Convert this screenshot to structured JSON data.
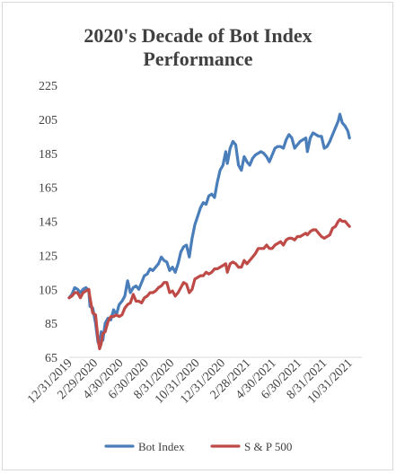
{
  "chart_data": {
    "type": "line",
    "title_lines": [
      "2020's Decade of Bot Index",
      "Performance"
    ],
    "xlabel": "",
    "ylabel": "",
    "ylim": [
      65,
      225
    ],
    "yticks": [
      65,
      85,
      105,
      125,
      145,
      165,
      185,
      205,
      225
    ],
    "xlim": [
      "2019-12-31",
      "2021-12-31"
    ],
    "xtick_labels": [
      "12/31/2019",
      "2/29/2020",
      "4/30/2020",
      "6/30/2020",
      "8/31/2020",
      "10/31/2020",
      "12/31/2020",
      "2/28/2021",
      "4/30/2021",
      "6/30/2021",
      "8/31/2021",
      "10/31/2021"
    ],
    "grid": false,
    "legend_position": "bottom",
    "series": [
      {
        "name": "Bot Index",
        "color": "#4a7ebb",
        "points": [
          [
            "2019-12-31",
            100
          ],
          [
            "2020-01-07",
            102
          ],
          [
            "2020-01-14",
            106
          ],
          [
            "2020-01-21",
            105
          ],
          [
            "2020-01-28",
            103
          ],
          [
            "2020-02-04",
            105
          ],
          [
            "2020-02-11",
            106
          ],
          [
            "2020-02-18",
            104
          ],
          [
            "2020-02-21",
            95
          ],
          [
            "2020-02-28",
            94
          ],
          [
            "2020-03-06",
            85
          ],
          [
            "2020-03-12",
            74
          ],
          [
            "2020-03-16",
            72
          ],
          [
            "2020-03-20",
            80
          ],
          [
            "2020-03-24",
            75
          ],
          [
            "2020-03-30",
            85
          ],
          [
            "2020-04-06",
            88
          ],
          [
            "2020-04-13",
            87
          ],
          [
            "2020-04-20",
            93
          ],
          [
            "2020-04-27",
            90
          ],
          [
            "2020-05-04",
            96
          ],
          [
            "2020-05-11",
            98
          ],
          [
            "2020-05-18",
            101
          ],
          [
            "2020-05-25",
            110
          ],
          [
            "2020-06-01",
            103
          ],
          [
            "2020-06-08",
            106
          ],
          [
            "2020-06-15",
            107
          ],
          [
            "2020-06-22",
            105
          ],
          [
            "2020-06-29",
            109
          ],
          [
            "2020-07-06",
            113
          ],
          [
            "2020-07-13",
            114
          ],
          [
            "2020-07-20",
            117
          ],
          [
            "2020-07-27",
            116
          ],
          [
            "2020-08-03",
            118
          ],
          [
            "2020-08-10",
            120
          ],
          [
            "2020-08-17",
            124
          ],
          [
            "2020-08-24",
            122
          ],
          [
            "2020-08-31",
            121
          ],
          [
            "2020-09-07",
            116
          ],
          [
            "2020-09-14",
            118
          ],
          [
            "2020-09-21",
            115
          ],
          [
            "2020-09-28",
            120
          ],
          [
            "2020-10-05",
            127
          ],
          [
            "2020-10-12",
            130
          ],
          [
            "2020-10-19",
            131
          ],
          [
            "2020-10-26",
            124
          ],
          [
            "2020-11-02",
            135
          ],
          [
            "2020-11-09",
            143
          ],
          [
            "2020-11-16",
            148
          ],
          [
            "2020-11-23",
            153
          ],
          [
            "2020-11-30",
            156
          ],
          [
            "2020-12-07",
            155
          ],
          [
            "2020-12-14",
            160
          ],
          [
            "2020-12-21",
            161
          ],
          [
            "2020-12-28",
            159
          ],
          [
            "2021-01-04",
            168
          ],
          [
            "2021-01-11",
            175
          ],
          [
            "2021-01-18",
            178
          ],
          [
            "2021-01-25",
            186
          ],
          [
            "2021-01-29",
            179
          ],
          [
            "2021-02-05",
            188
          ],
          [
            "2021-02-12",
            192
          ],
          [
            "2021-02-19",
            190
          ],
          [
            "2021-02-26",
            178
          ],
          [
            "2021-03-05",
            175
          ],
          [
            "2021-03-12",
            183
          ],
          [
            "2021-03-19",
            180
          ],
          [
            "2021-03-26",
            178
          ],
          [
            "2021-04-02",
            182
          ],
          [
            "2021-04-09",
            184
          ],
          [
            "2021-04-16",
            185
          ],
          [
            "2021-04-23",
            186
          ],
          [
            "2021-04-30",
            185
          ],
          [
            "2021-05-07",
            183
          ],
          [
            "2021-05-14",
            180
          ],
          [
            "2021-05-21",
            184
          ],
          [
            "2021-05-28",
            188
          ],
          [
            "2021-06-04",
            189
          ],
          [
            "2021-06-11",
            189
          ],
          [
            "2021-06-18",
            188
          ],
          [
            "2021-06-25",
            193
          ],
          [
            "2021-07-02",
            196
          ],
          [
            "2021-07-09",
            194
          ],
          [
            "2021-07-16",
            188
          ],
          [
            "2021-07-23",
            190
          ],
          [
            "2021-07-30",
            192
          ],
          [
            "2021-08-06",
            193
          ],
          [
            "2021-08-13",
            194
          ],
          [
            "2021-08-17",
            186
          ],
          [
            "2021-08-24",
            194
          ],
          [
            "2021-08-31",
            197
          ],
          [
            "2021-09-07",
            196
          ],
          [
            "2021-09-14",
            195
          ],
          [
            "2021-09-21",
            195
          ],
          [
            "2021-09-28",
            188
          ],
          [
            "2021-10-05",
            189
          ],
          [
            "2021-10-12",
            192
          ],
          [
            "2021-10-19",
            196
          ],
          [
            "2021-10-26",
            200
          ],
          [
            "2021-11-02",
            204
          ],
          [
            "2021-11-06",
            208
          ],
          [
            "2021-11-12",
            203
          ],
          [
            "2021-11-19",
            201
          ],
          [
            "2021-11-26",
            198
          ],
          [
            "2021-11-30",
            194
          ]
        ]
      },
      {
        "name": "S & P 500",
        "color": "#be4b48",
        "points": [
          [
            "2019-12-31",
            100
          ],
          [
            "2020-01-07",
            101
          ],
          [
            "2020-01-14",
            103
          ],
          [
            "2020-01-21",
            103
          ],
          [
            "2020-01-28",
            100
          ],
          [
            "2020-02-04",
            103
          ],
          [
            "2020-02-11",
            104
          ],
          [
            "2020-02-18",
            105
          ],
          [
            "2020-02-21",
            100
          ],
          [
            "2020-02-28",
            91
          ],
          [
            "2020-03-06",
            90
          ],
          [
            "2020-03-12",
            76
          ],
          [
            "2020-03-16",
            70
          ],
          [
            "2020-03-20",
            73
          ],
          [
            "2020-03-24",
            79
          ],
          [
            "2020-03-30",
            80
          ],
          [
            "2020-04-06",
            86
          ],
          [
            "2020-04-13",
            89
          ],
          [
            "2020-04-20",
            89
          ],
          [
            "2020-04-27",
            90
          ],
          [
            "2020-05-04",
            89
          ],
          [
            "2020-05-11",
            90
          ],
          [
            "2020-05-18",
            94
          ],
          [
            "2020-05-25",
            96
          ],
          [
            "2020-06-01",
            97
          ],
          [
            "2020-06-08",
            102
          ],
          [
            "2020-06-15",
            98
          ],
          [
            "2020-06-22",
            98
          ],
          [
            "2020-06-29",
            97
          ],
          [
            "2020-07-06",
            100
          ],
          [
            "2020-07-13",
            101
          ],
          [
            "2020-07-20",
            103
          ],
          [
            "2020-07-27",
            103
          ],
          [
            "2020-08-03",
            104
          ],
          [
            "2020-08-10",
            106
          ],
          [
            "2020-08-17",
            107
          ],
          [
            "2020-08-24",
            109
          ],
          [
            "2020-08-31",
            109
          ],
          [
            "2020-09-07",
            103
          ],
          [
            "2020-09-14",
            104
          ],
          [
            "2020-09-21",
            101
          ],
          [
            "2020-09-28",
            103
          ],
          [
            "2020-10-05",
            106
          ],
          [
            "2020-10-12",
            109
          ],
          [
            "2020-10-19",
            108
          ],
          [
            "2020-10-26",
            103
          ],
          [
            "2020-11-02",
            105
          ],
          [
            "2020-11-09",
            111
          ],
          [
            "2020-11-16",
            112
          ],
          [
            "2020-11-23",
            113
          ],
          [
            "2020-11-30",
            113
          ],
          [
            "2020-12-07",
            115
          ],
          [
            "2020-12-14",
            114
          ],
          [
            "2020-12-21",
            115
          ],
          [
            "2020-12-28",
            117
          ],
          [
            "2021-01-04",
            117
          ],
          [
            "2021-01-11",
            118
          ],
          [
            "2021-01-18",
            119
          ],
          [
            "2021-01-25",
            120
          ],
          [
            "2021-01-29",
            115
          ],
          [
            "2021-02-05",
            120
          ],
          [
            "2021-02-12",
            121
          ],
          [
            "2021-02-19",
            120
          ],
          [
            "2021-02-26",
            118
          ],
          [
            "2021-03-05",
            118
          ],
          [
            "2021-03-12",
            122
          ],
          [
            "2021-03-19",
            120
          ],
          [
            "2021-03-26",
            122
          ],
          [
            "2021-04-02",
            124
          ],
          [
            "2021-04-09",
            126
          ],
          [
            "2021-04-16",
            129
          ],
          [
            "2021-04-23",
            129
          ],
          [
            "2021-04-30",
            129
          ],
          [
            "2021-05-07",
            131
          ],
          [
            "2021-05-14",
            129
          ],
          [
            "2021-05-21",
            129
          ],
          [
            "2021-05-28",
            131
          ],
          [
            "2021-06-04",
            132
          ],
          [
            "2021-06-11",
            133
          ],
          [
            "2021-06-18",
            131
          ],
          [
            "2021-06-25",
            134
          ],
          [
            "2021-07-02",
            135
          ],
          [
            "2021-07-09",
            135
          ],
          [
            "2021-07-16",
            134
          ],
          [
            "2021-07-23",
            136
          ],
          [
            "2021-07-30",
            136
          ],
          [
            "2021-08-06",
            137
          ],
          [
            "2021-08-13",
            138
          ],
          [
            "2021-08-17",
            137
          ],
          [
            "2021-08-24",
            139
          ],
          [
            "2021-08-31",
            140
          ],
          [
            "2021-09-07",
            140
          ],
          [
            "2021-09-14",
            138
          ],
          [
            "2021-09-21",
            136
          ],
          [
            "2021-09-28",
            135
          ],
          [
            "2021-10-05",
            136
          ],
          [
            "2021-10-12",
            137
          ],
          [
            "2021-10-19",
            141
          ],
          [
            "2021-10-26",
            142
          ],
          [
            "2021-11-02",
            145
          ],
          [
            "2021-11-06",
            146
          ],
          [
            "2021-11-12",
            145
          ],
          [
            "2021-11-19",
            145
          ],
          [
            "2021-11-26",
            143
          ],
          [
            "2021-11-30",
            142
          ]
        ]
      }
    ]
  }
}
